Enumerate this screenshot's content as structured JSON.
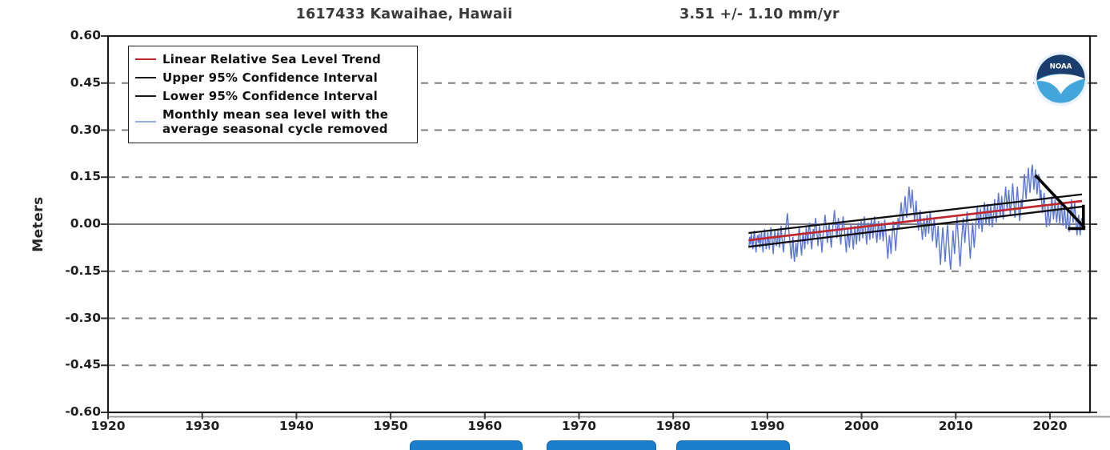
{
  "header": {
    "station_title": "1617433 Kawaihae, Hawaii",
    "trend_value": "3.51 +/-  1.10 mm/yr"
  },
  "legend": {
    "items": [
      {
        "label": "Linear Relative Sea Level Trend",
        "color": "#c0272d"
      },
      {
        "label": "Upper 95% Confidence Interval",
        "color": "#1a1a1a"
      },
      {
        "label": "Lower 95% Confidence Interval",
        "color": "#1a1a1a"
      },
      {
        "label": "Monthly mean sea level with the average seasonal cycle removed",
        "color": "#93abe8"
      }
    ]
  },
  "logo": {
    "name": "noaa-logo",
    "text": "NOAA"
  },
  "footer": {
    "buttons": [
      {
        "label": ""
      },
      {
        "label": ""
      },
      {
        "label": ""
      }
    ]
  },
  "axes": {
    "ytick_labels": [
      "0.60",
      "0.45",
      "0.30",
      "0.15",
      "0.00",
      "-0.15",
      "-0.30",
      "-0.45",
      "-0.60"
    ],
    "ytick_values": [
      0.6,
      0.45,
      0.3,
      0.15,
      0.0,
      -0.15,
      -0.3,
      -0.45,
      -0.6
    ],
    "xtick_labels": [
      "1920",
      "1930",
      "1940",
      "1950",
      "1960",
      "1970",
      "1980",
      "1990",
      "2000",
      "2010",
      "2020"
    ],
    "xtick_values": [
      1920,
      1930,
      1940,
      1950,
      1960,
      1970,
      1980,
      1990,
      2000,
      2010,
      2020
    ]
  },
  "chart_data": {
    "type": "line",
    "title": "1617433 Kawaihae, Hawaii",
    "trend_label": "3.51 +/-  1.10 mm/yr",
    "xlabel": "",
    "ylabel": "Meters",
    "xlim": [
      1920,
      2024.25
    ],
    "ylim": [
      -0.6,
      0.6
    ],
    "grid_values": [
      0.45,
      0.3,
      0.15,
      -0.15,
      -0.3,
      -0.45
    ],
    "zero_line_value": 0.0,
    "grid_color": "#7f7f7f",
    "series": {
      "monthly": {
        "name": "Monthly mean sea level with the average seasonal cycle removed",
        "color": "#5b76d8",
        "start_year": 1988,
        "step_months": 1,
        "units": "cm",
        "values": [
          -7.5,
          -4,
          -6.5,
          -3,
          -5.5,
          -8,
          -4.5,
          -2,
          -6,
          -9,
          -5,
          -3.5,
          -6,
          -3,
          -7.5,
          -5,
          -2.5,
          -6.5,
          -9,
          -4,
          -1.5,
          -5.5,
          -8,
          -6,
          -2.5,
          -5.5,
          -8,
          -4,
          -1,
          -3.5,
          -6.5,
          -9.5,
          -5,
          -2,
          -4.5,
          -7,
          -5.5,
          -2,
          -4.5,
          -7.5,
          -3,
          -0.5,
          -4,
          -6.5,
          -9,
          -5.5,
          -3,
          -1,
          1,
          3.5,
          0.5,
          -2.5,
          -5,
          -8.5,
          -11,
          -7,
          -4,
          -9,
          -12,
          -8.5,
          -6,
          -10.5,
          -7.5,
          -4,
          -1,
          -3.5,
          -7,
          -10,
          -6,
          -2.5,
          -5,
          -8,
          -4.5,
          -1,
          -3.5,
          -6.5,
          -2,
          0.5,
          -2.5,
          -5.5,
          -8,
          -4,
          -1.5,
          -4.5,
          -0.5,
          2,
          -1.5,
          -4,
          -7,
          -3.5,
          -0.5,
          -3,
          -6,
          -9,
          -5,
          -2,
          0.5,
          3,
          0,
          -3,
          -6,
          -2.5,
          0.5,
          -2,
          -5,
          -7.5,
          -3.5,
          -0.5,
          2,
          4.5,
          1.5,
          -1.5,
          -4.5,
          -1,
          2,
          -1,
          -4,
          -6.5,
          -2.5,
          0,
          2.5,
          0,
          -3,
          -6,
          -9,
          -5,
          -1.5,
          -4.5,
          -7.5,
          -3.5,
          0,
          -2.5,
          -5,
          -8,
          -4,
          -0.5,
          -3.5,
          -6.5,
          -2.5,
          0.5,
          -2.5,
          -5.5,
          -1.5,
          1,
          -1.5,
          -4.5,
          -0.5,
          2.5,
          -0.5,
          -3.5,
          -6.5,
          -2.5,
          0.5,
          -2,
          -5,
          -1,
          1.5,
          -1.5,
          -4.5,
          -0.5,
          2.5,
          -0.5,
          -3.5,
          -6,
          -2,
          1,
          -2,
          -5,
          -2.5,
          0.5,
          -2.5,
          -5.5,
          -1.5,
          1.5,
          -1.5,
          -4.5,
          -8,
          -11,
          -7,
          -3.5,
          -6,
          -9.5,
          -5.5,
          -2,
          1,
          -2,
          -5,
          -8.5,
          -4.5,
          -1,
          2,
          -1.5,
          1,
          4,
          7,
          3.5,
          0.5,
          3,
          6,
          9,
          5,
          2,
          5.5,
          8.5,
          12,
          8.5,
          5,
          8,
          11,
          7,
          4,
          1,
          4.5,
          7.5,
          3.5,
          0.5,
          -2,
          1.5,
          4.5,
          1,
          -2,
          -5,
          -1.5,
          2,
          -1,
          -4,
          -0.5,
          3,
          0,
          -3,
          1,
          4,
          0.5,
          -2.5,
          -5.5,
          -1.5,
          2,
          -1,
          -4.5,
          -7.5,
          -4,
          -0.5,
          -5,
          -9,
          -13,
          -8.5,
          -4.5,
          -1,
          -5,
          -8,
          -12,
          -7.5,
          -3.5,
          0,
          -4,
          -8,
          -12,
          -14.5,
          -10,
          -6,
          -2,
          -6,
          -9.5,
          -5,
          -1,
          2.5,
          -1.5,
          -5.5,
          -10,
          -13.5,
          -9,
          -5,
          -1.5,
          2,
          -2,
          -6,
          -2.5,
          1,
          4,
          0.5,
          -3,
          -7,
          -11,
          -7,
          -3,
          0.5,
          -3.5,
          -7.5,
          -4,
          -0.5,
          3,
          6,
          2,
          -1.5,
          1.5,
          5,
          1,
          -2.5,
          0.5,
          4,
          7,
          3.5,
          0,
          3,
          6.5,
          2.5,
          -0.5,
          2.5,
          6,
          2,
          -1,
          1.5,
          4.5,
          8,
          4,
          0.5,
          3.5,
          7,
          10,
          6,
          2.5,
          5.5,
          9,
          5,
          1.5,
          5,
          8.5,
          12,
          8,
          4.5,
          7.5,
          11,
          7,
          3,
          6,
          9.5,
          13,
          9,
          5.5,
          2,
          5,
          8.5,
          12,
          8,
          4,
          1,
          4.5,
          8,
          5,
          9,
          13,
          16,
          12,
          8,
          11,
          14.5,
          18,
          14,
          10,
          13,
          17,
          19,
          15,
          11,
          14,
          17.5,
          13.5,
          9.5,
          12.5,
          16,
          12,
          8,
          11,
          7,
          3.5,
          6.5,
          10,
          6,
          2,
          -1,
          2.5,
          6,
          2.5,
          -0.5,
          2,
          5.5,
          9,
          5,
          1.5,
          4.5,
          8,
          4,
          0.5,
          3.5,
          7,
          3,
          0,
          3.5,
          7,
          3,
          -0.5,
          2.5,
          6,
          2,
          -1.5,
          1,
          4.5,
          0.5,
          -2.5,
          1,
          4.5,
          8,
          4,
          0.5,
          3.5,
          7,
          3,
          -0.5,
          -3.5,
          0,
          3,
          -1,
          -3.5,
          0.5,
          2
        ]
      },
      "trend": {
        "name": "Linear Relative Sea Level Trend",
        "color": "#c0272d",
        "x": [
          1988.0,
          2023.4
        ],
        "y": [
          -0.051,
          0.074
        ]
      },
      "ci_upper": {
        "name": "Upper 95% Confidence Interval",
        "color": "#101010",
        "x": [
          1988.0,
          2023.4
        ],
        "y": [
          -0.028,
          0.095
        ]
      },
      "ci_lower": {
        "name": "Lower 95% Confidence Interval",
        "color": "#101010",
        "x": [
          1988.0,
          2023.4
        ],
        "y": [
          -0.072,
          0.056
        ]
      }
    },
    "annotation_arrow": {
      "color": "#000000",
      "shaft": [
        [
          2018.45,
          0.156
        ],
        [
          2023.7,
          -0.012
        ]
      ],
      "barb_vertical": [
        [
          2023.55,
          0.062
        ],
        [
          2023.55,
          -0.008
        ]
      ],
      "barb_horizontal": [
        [
          2021.9,
          -0.014
        ],
        [
          2023.75,
          -0.014
        ]
      ]
    }
  }
}
